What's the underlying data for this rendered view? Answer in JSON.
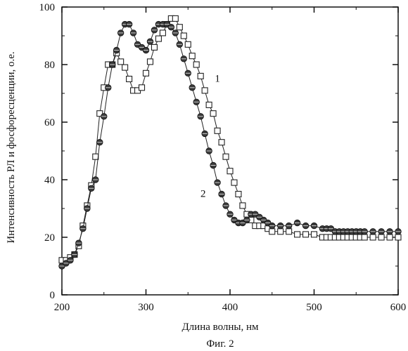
{
  "caption": "Фиг. 2",
  "chart_data": {
    "type": "line",
    "title": "",
    "xlabel": "Длина волны, нм",
    "ylabel": "Интенсивность РЛ и фосфоресценции, о.е.",
    "xlim": [
      200,
      600
    ],
    "ylim": [
      0,
      100
    ],
    "xticks": [
      200,
      300,
      400,
      500,
      600
    ],
    "yticks": [
      0,
      20,
      40,
      60,
      80,
      100
    ],
    "grid": false,
    "legend": "none",
    "series": [
      {
        "name": "1",
        "marker": "square",
        "color": "#222222",
        "label_at": [
          385,
          74
        ],
        "x": [
          200,
          205,
          210,
          215,
          220,
          225,
          230,
          235,
          240,
          245,
          250,
          255,
          260,
          265,
          270,
          275,
          280,
          285,
          290,
          295,
          300,
          305,
          310,
          315,
          320,
          325,
          330,
          335,
          340,
          345,
          350,
          355,
          360,
          365,
          370,
          375,
          380,
          385,
          390,
          395,
          400,
          405,
          410,
          415,
          420,
          425,
          430,
          435,
          440,
          445,
          450,
          460,
          470,
          480,
          490,
          500,
          510,
          515,
          520,
          525,
          530,
          535,
          540,
          545,
          550,
          555,
          560,
          570,
          580,
          590,
          600
        ],
        "values": [
          12,
          12,
          13,
          14,
          17,
          24,
          31,
          38,
          48,
          63,
          72,
          80,
          80,
          84,
          81,
          79,
          75,
          71,
          71,
          72,
          77,
          81,
          86,
          89,
          91,
          94,
          96,
          96,
          93,
          90,
          87,
          83,
          80,
          76,
          71,
          66,
          63,
          57,
          53,
          48,
          43,
          39,
          35,
          31,
          28,
          26,
          24,
          24,
          24,
          23,
          22,
          22,
          22,
          21,
          21,
          21,
          20,
          20,
          20,
          20,
          20,
          20,
          20,
          20,
          20,
          20,
          20,
          20,
          20,
          20,
          20
        ]
      },
      {
        "name": "2",
        "marker": "circle",
        "color": "#222222",
        "label_at": [
          368,
          34
        ],
        "x": [
          200,
          205,
          210,
          215,
          220,
          225,
          230,
          235,
          240,
          245,
          250,
          255,
          260,
          265,
          270,
          275,
          280,
          285,
          290,
          295,
          300,
          305,
          310,
          315,
          320,
          325,
          330,
          335,
          340,
          345,
          350,
          355,
          360,
          365,
          370,
          375,
          380,
          385,
          390,
          395,
          400,
          405,
          410,
          415,
          420,
          425,
          430,
          435,
          440,
          445,
          450,
          460,
          470,
          480,
          490,
          500,
          510,
          515,
          520,
          525,
          530,
          535,
          540,
          545,
          550,
          555,
          560,
          570,
          580,
          590,
          600
        ],
        "values": [
          10,
          11,
          12,
          14,
          18,
          23,
          30,
          37,
          40,
          53,
          62,
          72,
          80,
          85,
          91,
          94,
          94,
          91,
          87,
          86,
          85,
          88,
          92,
          94,
          94,
          94,
          93,
          91,
          87,
          82,
          77,
          72,
          67,
          62,
          56,
          50,
          45,
          39,
          35,
          31,
          28,
          26,
          25,
          25,
          26,
          28,
          28,
          27,
          26,
          25,
          24,
          24,
          24,
          25,
          24,
          24,
          23,
          23,
          23,
          22,
          22,
          22,
          22,
          22,
          22,
          22,
          22,
          22,
          22,
          22,
          22
        ]
      }
    ]
  }
}
